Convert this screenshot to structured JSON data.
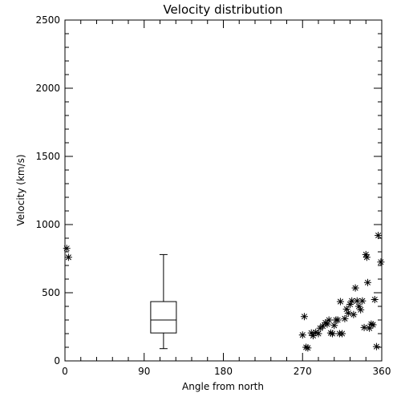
{
  "chart_data": {
    "type": "scatter",
    "title": "Velocity distribution",
    "xlabel": "Angle from north",
    "ylabel": "Velocity (km/s)",
    "xlim": [
      0,
      360
    ],
    "ylim": [
      0,
      2500
    ],
    "xticks": [
      0,
      90,
      180,
      270,
      360
    ],
    "yticks": [
      0,
      500,
      1000,
      1500,
      2000,
      2500
    ],
    "x_minor_step": 18,
    "y_minor_step": 100,
    "grid": false,
    "marker": "asterisk",
    "points": [
      [
        2,
        825
      ],
      [
        4,
        760
      ],
      [
        270,
        190
      ],
      [
        272,
        325
      ],
      [
        274,
        100
      ],
      [
        276,
        95
      ],
      [
        280,
        205
      ],
      [
        282,
        185
      ],
      [
        285,
        210
      ],
      [
        288,
        200
      ],
      [
        290,
        240
      ],
      [
        293,
        255
      ],
      [
        296,
        280
      ],
      [
        298,
        270
      ],
      [
        300,
        300
      ],
      [
        302,
        205
      ],
      [
        304,
        200
      ],
      [
        306,
        260
      ],
      [
        308,
        300
      ],
      [
        310,
        300
      ],
      [
        312,
        200
      ],
      [
        313,
        435
      ],
      [
        315,
        200
      ],
      [
        318,
        310
      ],
      [
        320,
        380
      ],
      [
        322,
        350
      ],
      [
        324,
        415
      ],
      [
        326,
        440
      ],
      [
        328,
        340
      ],
      [
        330,
        535
      ],
      [
        332,
        440
      ],
      [
        334,
        400
      ],
      [
        336,
        375
      ],
      [
        338,
        440
      ],
      [
        340,
        245
      ],
      [
        342,
        780
      ],
      [
        343,
        760
      ],
      [
        344,
        575
      ],
      [
        346,
        240
      ],
      [
        348,
        270
      ],
      [
        350,
        265
      ],
      [
        352,
        450
      ],
      [
        354,
        105
      ],
      [
        356,
        920
      ],
      [
        359,
        725
      ]
    ],
    "boxplot": {
      "x": 112,
      "min": 90,
      "q1": 205,
      "median": 300,
      "q3": 435,
      "max": 780
    }
  }
}
